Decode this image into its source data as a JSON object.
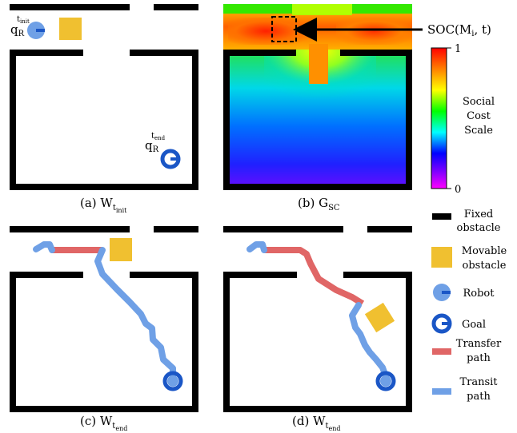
{
  "panels": {
    "a": {
      "caption_main": "(a) W",
      "caption_sub": "t",
      "caption_subsub": "init"
    },
    "b": {
      "caption_main": "(b) G",
      "caption_sub": "SC"
    },
    "c": {
      "caption_main": "(c) W",
      "caption_sub": "t",
      "caption_subsub": "end"
    },
    "d": {
      "caption_main": "(d) W",
      "caption_sub": "t",
      "caption_subsub": "end"
    }
  },
  "robot_label": {
    "main": "q",
    "sub": "R",
    "sup_main": "t",
    "sup_sub": "init"
  },
  "goal_label": {
    "main": "q",
    "sub": "R",
    "sup_main": "t",
    "sup_sub": "end"
  },
  "soc_annotation": "SOC(M",
  "soc_annotation_sub": "i",
  "soc_annotation_end": ", t)",
  "colorbar": {
    "max_label": "1",
    "min_label": "0",
    "title_lines": [
      "Social",
      "Cost",
      "Scale"
    ]
  },
  "legend": [
    {
      "name": "fixed-obstacle",
      "lines": [
        "Fixed",
        "obstacle"
      ],
      "color": "#000000"
    },
    {
      "name": "movable-obstacle",
      "lines": [
        "Movable",
        "obstacle"
      ],
      "color": "#F0C030"
    },
    {
      "name": "robot",
      "lines": [
        "Robot"
      ],
      "color": "#6FA0E6"
    },
    {
      "name": "goal",
      "lines": [
        "Goal"
      ],
      "color": "#1A56C6"
    },
    {
      "name": "transfer-path",
      "lines": [
        "Transfer",
        "path"
      ],
      "color": "#E06666"
    },
    {
      "name": "transit-path",
      "lines": [
        "Transit",
        "path"
      ],
      "color": "#6FA0E6"
    }
  ],
  "colors": {
    "wall": "#000000",
    "box": "#F0C030",
    "robot": "#6FA0E6",
    "goal": "#1A56C6",
    "transfer": "#E06666",
    "transit": "#6FA0E6"
  }
}
